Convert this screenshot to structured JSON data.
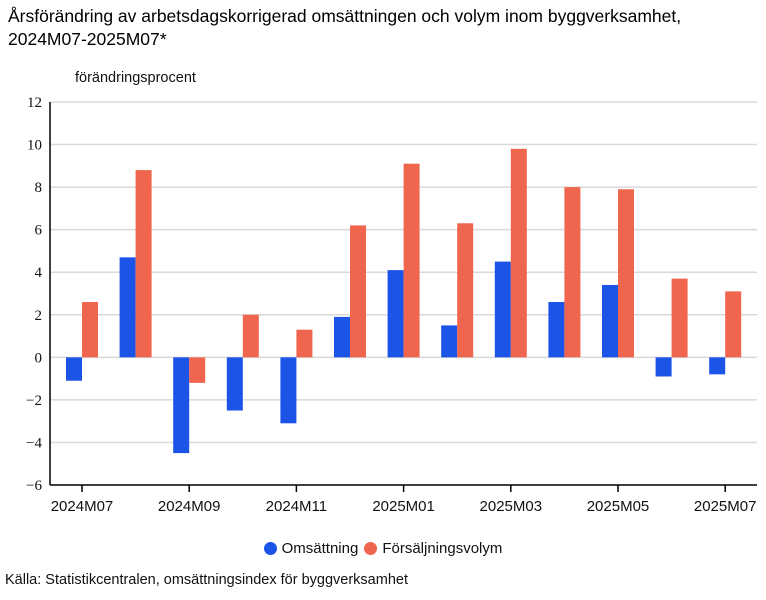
{
  "header": {
    "title": "Årsförändring av arbetsdagskorrigerad omsättningen och volym inom byggverksamhet, 2024M07-2025M07*",
    "unit_label": "förändringsprocent"
  },
  "legend": {
    "items": [
      {
        "label": "Omsättning",
        "color": "#1d54e8"
      },
      {
        "label": "Försäljningsvolym",
        "color": "#f0654e"
      }
    ]
  },
  "footer": {
    "source": "Källa: Statistikcentralen, omsättningsindex för byggverksamhet"
  },
  "colors": {
    "series_blue": "#1d54e8",
    "series_coral": "#f0654e",
    "gridline": "#d9d9d9",
    "axis": "#000000"
  },
  "chart_data": {
    "type": "bar",
    "title": "Årsförändring av arbetsdagskorrigerad omsättningen och volym inom byggverksamhet, 2024M07-2025M07*",
    "ylabel": "förändringsprocent",
    "xlabel": "",
    "categories": [
      "2024M07",
      "2024M08",
      "2024M09",
      "2024M10",
      "2024M11",
      "2024M12",
      "2025M01",
      "2025M02",
      "2025M03",
      "2025M04",
      "2025M05",
      "2025M06",
      "2025M07"
    ],
    "x_tick_labels": [
      "2024M07",
      "2024M09",
      "2024M11",
      "2025M01",
      "2025M03",
      "2025M05",
      "2025M07"
    ],
    "series": [
      {
        "name": "Omsättning",
        "color": "#1d54e8",
        "values": [
          -1.1,
          4.7,
          -4.5,
          -2.5,
          -3.1,
          1.9,
          4.1,
          1.5,
          4.5,
          2.6,
          3.4,
          -0.9,
          -0.8
        ]
      },
      {
        "name": "Försäljningsvolym",
        "color": "#f0654e",
        "values": [
          2.6,
          8.8,
          -1.2,
          2.0,
          1.3,
          6.2,
          9.1,
          6.3,
          9.8,
          8.0,
          7.9,
          3.7,
          3.1
        ]
      }
    ],
    "ylim": [
      -6,
      12
    ],
    "ytick_step": 2,
    "grid": "horizontal",
    "legend_position": "bottom"
  }
}
